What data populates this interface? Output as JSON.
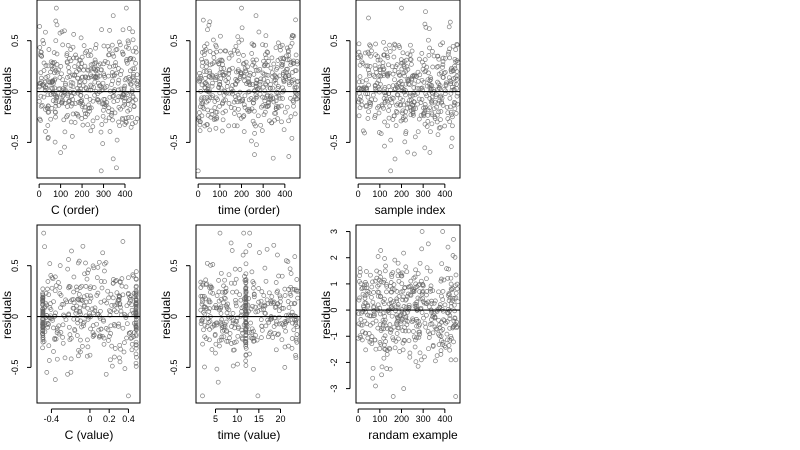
{
  "chart_data": [
    {
      "type": "scatter",
      "title": "",
      "xlabel": "C (order)",
      "ylabel": "residuals",
      "xlim": [
        -10,
        470
      ],
      "ylim": [
        -0.85,
        0.9
      ],
      "xticks": [
        0,
        100,
        200,
        300,
        400
      ],
      "yticks": [
        -0.5,
        0.0,
        0.5
      ],
      "reference_line_y": 0,
      "grid": false,
      "gen": {
        "dist": "uniform",
        "n": 460,
        "xmin": 0,
        "xmax": 460,
        "mean": 0.05,
        "sd": 0.24,
        "ymin": -0.78,
        "ymax": 0.82,
        "seed": 11
      },
      "highlights": [
        {
          "x": 80,
          "y": 0.82
        },
        {
          "x": 100,
          "y": -0.6
        },
        {
          "x": 360,
          "y": -0.75
        },
        {
          "x": 420,
          "y": 0.62
        }
      ]
    },
    {
      "type": "scatter",
      "title": "",
      "xlabel": "time (order)",
      "ylabel": "residuals",
      "xlim": [
        -10,
        470
      ],
      "ylim": [
        -0.85,
        0.9
      ],
      "xticks": [
        0,
        100,
        200,
        300,
        400
      ],
      "yticks": [
        -0.5,
        0.0,
        0.5
      ],
      "reference_line_y": 0,
      "grid": false,
      "gen": {
        "dist": "uniform",
        "n": 460,
        "xmin": 0,
        "xmax": 460,
        "mean": 0.05,
        "sd": 0.24,
        "ymin": -0.78,
        "ymax": 0.82,
        "seed": 23
      },
      "highlights": [
        {
          "x": 200,
          "y": 0.82
        },
        {
          "x": 0,
          "y": -0.78
        },
        {
          "x": 260,
          "y": -0.62
        }
      ]
    },
    {
      "type": "scatter",
      "title": "",
      "xlabel": "sample index",
      "ylabel": "residuals",
      "xlim": [
        -10,
        470
      ],
      "ylim": [
        -0.85,
        0.9
      ],
      "xticks": [
        0,
        100,
        200,
        300,
        400
      ],
      "yticks": [
        -0.5,
        0.0,
        0.5
      ],
      "reference_line_y": 0,
      "grid": false,
      "gen": {
        "dist": "uniform",
        "n": 460,
        "xmin": 0,
        "xmax": 460,
        "mean": 0.05,
        "sd": 0.24,
        "ymin": -0.78,
        "ymax": 0.82,
        "seed": 37
      },
      "highlights": [
        {
          "x": 200,
          "y": 0.82
        },
        {
          "x": 150,
          "y": -0.78
        }
      ]
    },
    {
      "type": "scatter",
      "title": "",
      "xlabel": "C (value)",
      "ylabel": "residuals",
      "xlim": [
        -0.55,
        0.52
      ],
      "ylim": [
        -0.85,
        0.9
      ],
      "xticks": [
        -0.4,
        0.0,
        0.2,
        0.4
      ],
      "yticks": [
        -0.5,
        0.0,
        0.5
      ],
      "reference_line_y": 0,
      "grid": false,
      "gen": {
        "dist": "uniform",
        "n": 300,
        "xmin": -0.48,
        "xmax": 0.48,
        "mean": 0.05,
        "sd": 0.24,
        "ymin": -0.78,
        "ymax": 0.82,
        "seed": 51
      },
      "columns": [
        {
          "x": -0.49,
          "n": 70,
          "mean": 0.0,
          "sd": 0.16
        },
        {
          "x": 0.48,
          "n": 60,
          "mean": 0.0,
          "sd": 0.2
        }
      ],
      "highlights": [
        {
          "x": -0.48,
          "y": 0.82
        },
        {
          "x": 0.4,
          "y": -0.78
        },
        {
          "x": -0.36,
          "y": -0.62
        }
      ]
    },
    {
      "type": "scatter",
      "title": "",
      "xlabel": "time (value)",
      "ylabel": "residuals",
      "xlim": [
        0.5,
        24.5
      ],
      "ylim": [
        -0.85,
        0.9
      ],
      "xticks": [
        5,
        10,
        15,
        20
      ],
      "yticks": [
        -0.5,
        0.0,
        0.5
      ],
      "reference_line_y": 0,
      "grid": false,
      "gen": {
        "dist": "uniform",
        "n": 340,
        "xmin": 1.5,
        "xmax": 24,
        "mean": 0.05,
        "sd": 0.24,
        "ymin": -0.78,
        "ymax": 0.82,
        "seed": 67
      },
      "columns": [
        {
          "x": 12,
          "n": 70,
          "mean": 0.0,
          "sd": 0.2
        }
      ],
      "highlights": [
        {
          "x": 11.5,
          "y": 0.82
        },
        {
          "x": 2,
          "y": -0.78
        },
        {
          "x": 21,
          "y": -0.5
        }
      ]
    },
    {
      "type": "scatter",
      "title": "",
      "xlabel": "randam example",
      "ylabel": "residuals",
      "xlim": [
        -10,
        470
      ],
      "ylim": [
        -3.55,
        3.25
      ],
      "xticks": [
        0,
        100,
        200,
        300,
        400
      ],
      "yticks": [
        -3,
        -2,
        -1,
        0,
        1,
        2,
        3
      ],
      "reference_line_y": 0,
      "grid": false,
      "gen": {
        "dist": "normal",
        "n": 460,
        "xmin": 0,
        "xmax": 460,
        "mean": 0.0,
        "sd": 1.0,
        "ymin": -3.3,
        "ymax": 3.0,
        "seed": 83
      },
      "highlights": [
        {
          "x": 390,
          "y": 3.0
        },
        {
          "x": 440,
          "y": 2.7
        },
        {
          "x": 450,
          "y": -3.3
        },
        {
          "x": 80,
          "y": -2.9
        },
        {
          "x": 210,
          "y": -3.0
        }
      ]
    }
  ]
}
